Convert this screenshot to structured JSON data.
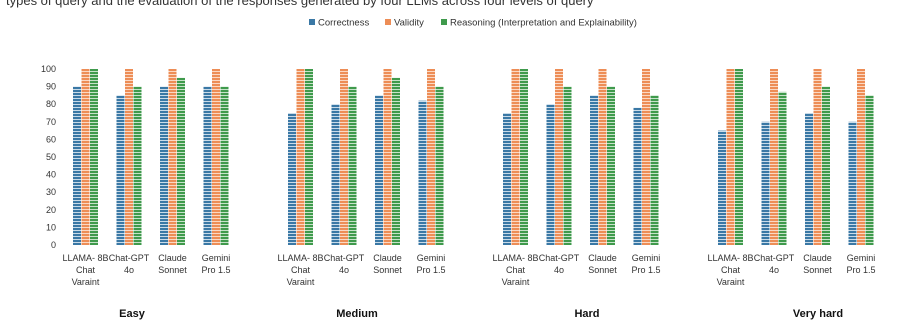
{
  "top_text": "types of query and the evaluation of the responses generated by four LLMs across four levels of query",
  "chart_data": {
    "type": "bar",
    "series_names": [
      "Correctness",
      "Validity",
      "Reasoning (Interpretation and Explainability)"
    ],
    "colors": [
      "#3a78a5",
      "#ed8d56",
      "#3f9a4c"
    ],
    "ylim": [
      0,
      100
    ],
    "yticks": [
      0,
      10,
      20,
      30,
      40,
      50,
      60,
      70,
      80,
      90,
      100
    ],
    "groups": [
      {
        "label": "Easy",
        "models": [
          {
            "name": [
              "LLAMA- 8B",
              "Chat",
              "Varaint"
            ],
            "values": [
              90,
              100,
              100
            ]
          },
          {
            "name": [
              "Chat-GPT",
              "4o"
            ],
            "values": [
              85,
              100,
              90
            ]
          },
          {
            "name": [
              "Claude",
              "Sonnet"
            ],
            "values": [
              90,
              100,
              95
            ]
          },
          {
            "name": [
              "Gemini",
              "Pro 1.5"
            ],
            "values": [
              90,
              100,
              90
            ]
          }
        ]
      },
      {
        "label": "Medium",
        "models": [
          {
            "name": [
              "LLAMA- 8B",
              "Chat",
              "Varaint"
            ],
            "values": [
              75,
              100,
              100
            ]
          },
          {
            "name": [
              "Chat-GPT",
              "4o"
            ],
            "values": [
              80,
              100,
              90
            ]
          },
          {
            "name": [
              "Claude",
              "Sonnet"
            ],
            "values": [
              85,
              100,
              95
            ]
          },
          {
            "name": [
              "Gemini",
              "Pro 1.5"
            ],
            "values": [
              82,
              100,
              90
            ]
          }
        ]
      },
      {
        "label": "Hard",
        "models": [
          {
            "name": [
              "LLAMA- 8B",
              "Chat",
              "Varaint"
            ],
            "values": [
              75,
              100,
              100
            ]
          },
          {
            "name": [
              "Chat-GPT",
              "4o"
            ],
            "values": [
              80,
              100,
              90
            ]
          },
          {
            "name": [
              "Claude",
              "Sonnet"
            ],
            "values": [
              85,
              100,
              90
            ]
          },
          {
            "name": [
              "Gemini",
              "Pro 1.5"
            ],
            "values": [
              78,
              100,
              85
            ]
          }
        ]
      },
      {
        "label": "Very hard",
        "models": [
          {
            "name": [
              "LLAMA- 8B",
              "Chat",
              "Varaint"
            ],
            "values": [
              65,
              100,
              100
            ]
          },
          {
            "name": [
              "Chat-GPT",
              "4o"
            ],
            "values": [
              70,
              100,
              87
            ]
          },
          {
            "name": [
              "Claude",
              "Sonnet"
            ],
            "values": [
              75,
              100,
              90
            ]
          },
          {
            "name": [
              "Gemini",
              "Pro 1.5"
            ],
            "values": [
              70,
              100,
              85
            ]
          }
        ]
      }
    ]
  }
}
